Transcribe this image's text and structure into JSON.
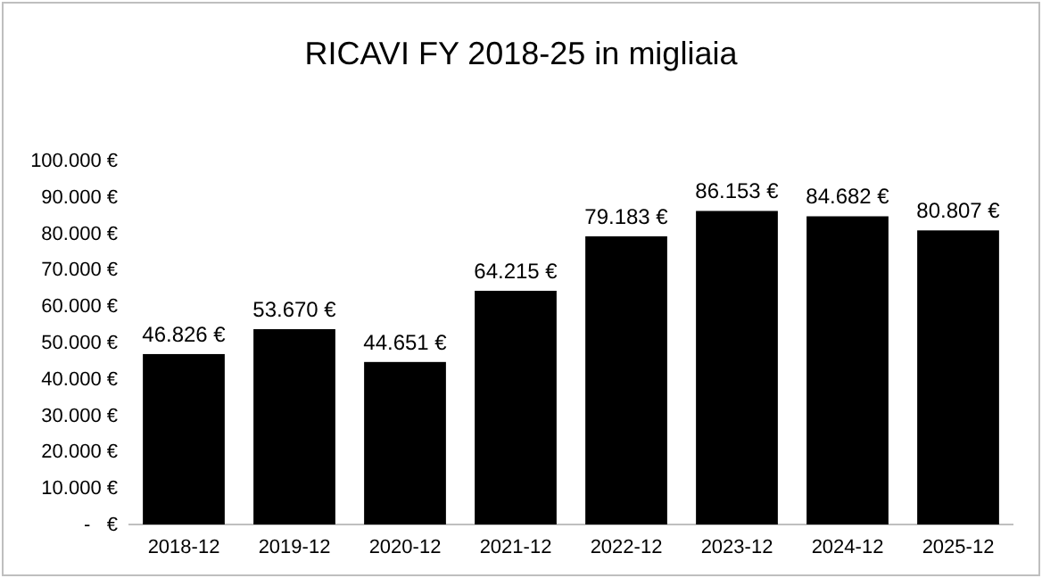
{
  "chart_data": {
    "type": "bar",
    "title": "RICAVI FY 2018-25 in migliaia",
    "categories": [
      "2018-12",
      "2019-12",
      "2020-12",
      "2021-12",
      "2022-12",
      "2023-12",
      "2024-12",
      "2025-12"
    ],
    "values": [
      46826,
      53670,
      44651,
      64215,
      79183,
      86153,
      84682,
      80807
    ],
    "value_labels": [
      "46.826 €",
      "53.670 €",
      "44.651 €",
      "64.215 €",
      "79.183 €",
      "86.153 €",
      "84.682 €",
      "80.807 €"
    ],
    "color": "#000000",
    "ylim": [
      0,
      100000
    ],
    "yticks": [
      {
        "value": 0,
        "label": "-   €"
      },
      {
        "value": 10000,
        "label": "10.000 €"
      },
      {
        "value": 20000,
        "label": "20.000 €"
      },
      {
        "value": 30000,
        "label": "30.000 €"
      },
      {
        "value": 40000,
        "label": "40.000 €"
      },
      {
        "value": 50000,
        "label": "50.000 €"
      },
      {
        "value": 60000,
        "label": "60.000 €"
      },
      {
        "value": 70000,
        "label": "70.000 €"
      },
      {
        "value": 80000,
        "label": "80.000 €"
      },
      {
        "value": 90000,
        "label": "90.000 €"
      },
      {
        "value": 100000,
        "label": "100.000 €"
      }
    ],
    "grid": false
  }
}
